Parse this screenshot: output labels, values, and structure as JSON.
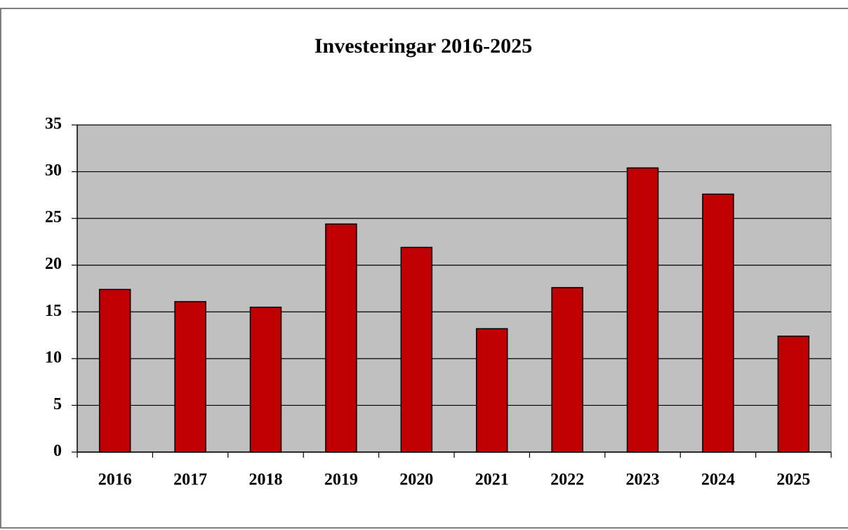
{
  "chart_data": {
    "type": "bar",
    "title": "Investeringar 2016-2025",
    "categories": [
      "2016",
      "2017",
      "2018",
      "2019",
      "2020",
      "2021",
      "2022",
      "2023",
      "2024",
      "2025"
    ],
    "values": [
      17.4,
      16.1,
      15.5,
      24.4,
      21.9,
      13.2,
      17.6,
      30.4,
      27.6,
      12.4
    ],
    "color": "#c00000",
    "ylim": [
      0,
      35
    ],
    "yticks": [
      0,
      5,
      10,
      15,
      20,
      25,
      30,
      35
    ],
    "grid": true
  }
}
